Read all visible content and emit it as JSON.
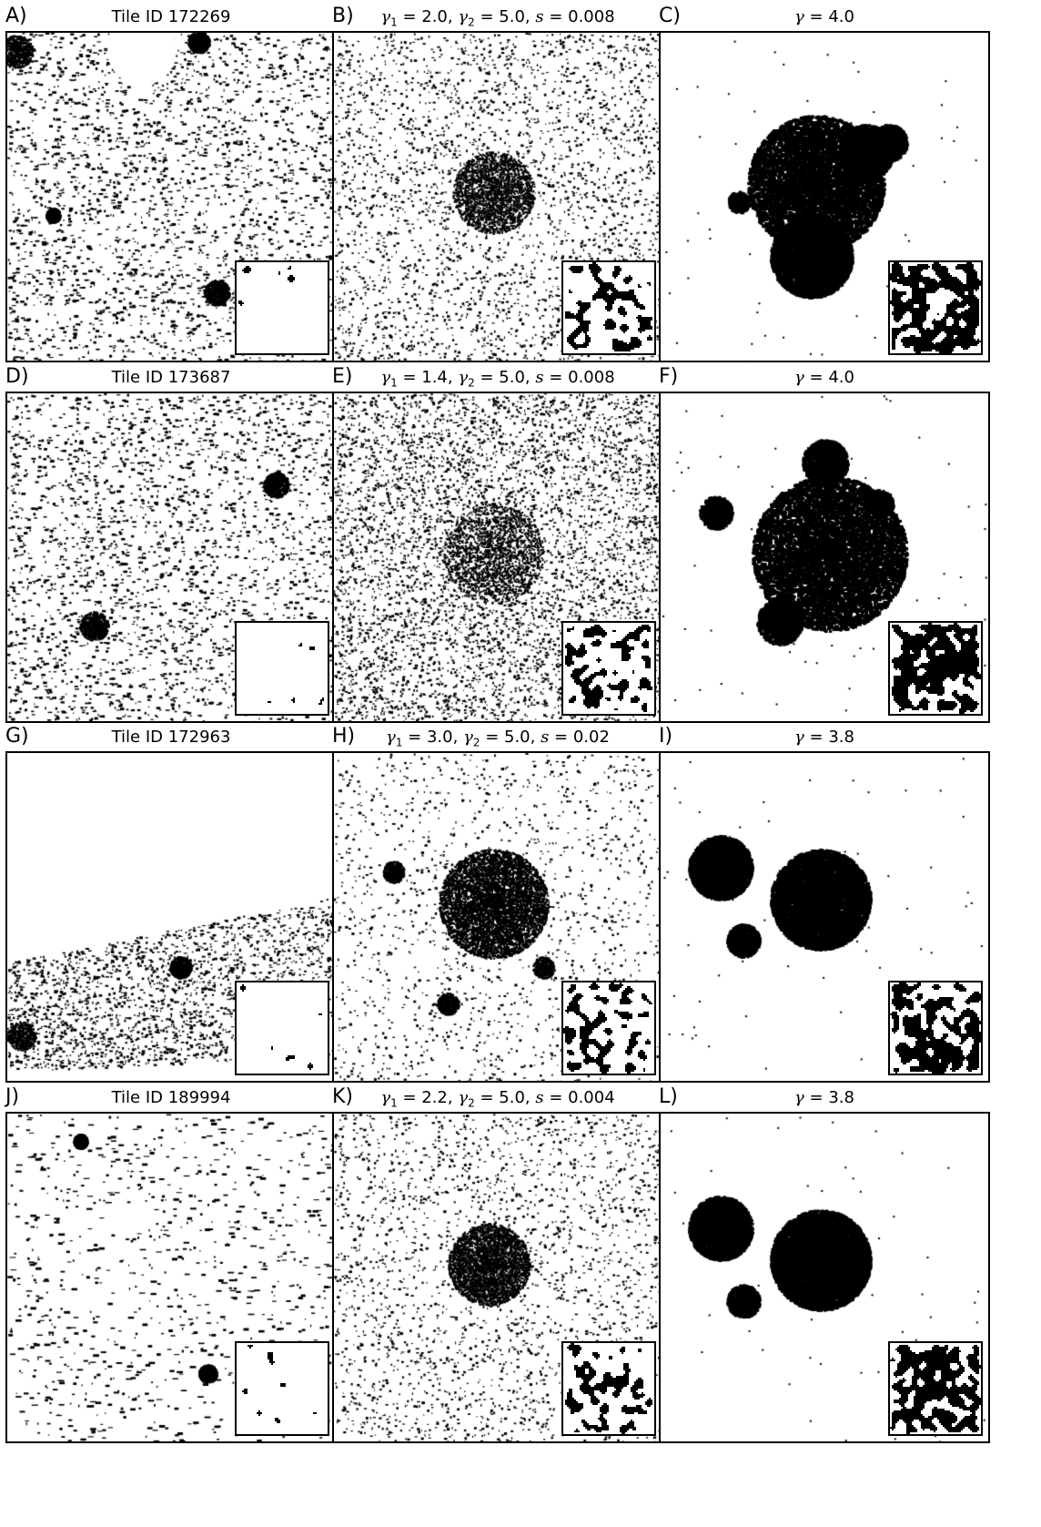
{
  "panels": [
    {
      "letter": "A)",
      "title": "Tile ID 172269",
      "kind": "tile",
      "seed": 11,
      "pattern": "tile-a"
    },
    {
      "letter": "B)",
      "title": "",
      "params": {
        "g1": "2.0",
        "g2": "5.0",
        "s": "0.008"
      },
      "kind": "gen",
      "seed": 12,
      "pattern": "gen-b"
    },
    {
      "letter": "C)",
      "title": "",
      "gamma": "4.0",
      "kind": "blob",
      "seed": 13,
      "pattern": "blob-c"
    },
    {
      "letter": "D)",
      "title": "Tile ID 173687",
      "kind": "tile",
      "seed": 21,
      "pattern": "tile-d"
    },
    {
      "letter": "E)",
      "title": "",
      "params": {
        "g1": "1.4",
        "g2": "5.0",
        "s": "0.008"
      },
      "kind": "gen",
      "seed": 22,
      "pattern": "gen-e"
    },
    {
      "letter": "F)",
      "title": "",
      "gamma": "4.0",
      "kind": "blob",
      "seed": 23,
      "pattern": "blob-f"
    },
    {
      "letter": "G)",
      "title": "Tile ID 172963",
      "kind": "tile",
      "seed": 31,
      "pattern": "tile-g"
    },
    {
      "letter": "H)",
      "title": "",
      "params": {
        "g1": "3.0",
        "g2": "5.0",
        "s": "0.02"
      },
      "kind": "gen",
      "seed": 32,
      "pattern": "gen-h"
    },
    {
      "letter": "I)",
      "title": "",
      "gamma": "3.8",
      "kind": "blob",
      "seed": 33,
      "pattern": "blob-i"
    },
    {
      "letter": "J)",
      "title": "Tile ID 189994",
      "kind": "tile",
      "seed": 41,
      "pattern": "tile-j"
    },
    {
      "letter": "K)",
      "title": "",
      "params": {
        "g1": "2.2",
        "g2": "5.0",
        "s": "0.004"
      },
      "kind": "gen",
      "seed": 42,
      "pattern": "gen-k"
    },
    {
      "letter": "L)",
      "title": "",
      "gamma": "3.8",
      "kind": "blob",
      "seed": 43,
      "pattern": "blob-l"
    }
  ],
  "colors": {
    "ink": "#000000",
    "paper": "#ffffff"
  }
}
